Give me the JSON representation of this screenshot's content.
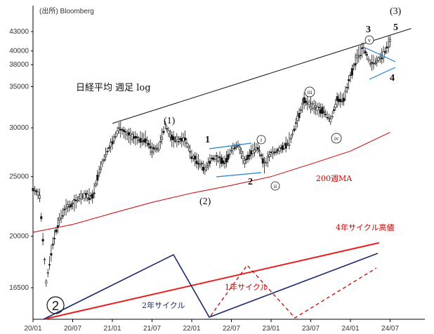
{
  "chart_data": {
    "type": "line",
    "title": "日経平均 週足 log",
    "source": "(出所) Bloomberg",
    "scale": "log",
    "ylim": [
      15000,
      46000
    ],
    "x_ticks": [
      "20/01",
      "20/07",
      "21/01",
      "21/07",
      "22/01",
      "22/07",
      "23/01",
      "23/07",
      "24/01",
      "24/07"
    ],
    "y_ticks": [
      43000,
      40000,
      38000,
      35000,
      30000,
      25000,
      20000,
      16500
    ],
    "series": [
      {
        "name": "日経平均",
        "style": "candles",
        "values": [
          [
            "20/01",
            23900
          ],
          [
            "20/02",
            23300
          ],
          [
            "20/03",
            16800
          ],
          [
            "20/04",
            19500
          ],
          [
            "20/05",
            21300
          ],
          [
            "20/06",
            22300
          ],
          [
            "20/07",
            22500
          ],
          [
            "20/08",
            23100
          ],
          [
            "20/09",
            23300
          ],
          [
            "20/10",
            23200
          ],
          [
            "20/11",
            25500
          ],
          [
            "20/12",
            27200
          ],
          [
            "21/01",
            28400
          ],
          [
            "21/02",
            30000
          ],
          [
            "21/03",
            29300
          ],
          [
            "21/04",
            29000
          ],
          [
            "21/05",
            28700
          ],
          [
            "21/06",
            28800
          ],
          [
            "21/07",
            27600
          ],
          [
            "21/08",
            27900
          ],
          [
            "21/09",
            30300
          ],
          [
            "21/10",
            28800
          ],
          [
            "21/11",
            28600
          ],
          [
            "21/12",
            28800
          ],
          [
            "22/01",
            27000
          ],
          [
            "22/02",
            26400
          ],
          [
            "22/03",
            25700
          ],
          [
            "22/04",
            26800
          ],
          [
            "22/05",
            26700
          ],
          [
            "22/06",
            26400
          ],
          [
            "22/07",
            27600
          ],
          [
            "22/08",
            28200
          ],
          [
            "22/09",
            26400
          ],
          [
            "22/10",
            27400
          ],
          [
            "22/11",
            28000
          ],
          [
            "22/12",
            26100
          ],
          [
            "23/01",
            27300
          ],
          [
            "23/02",
            27500
          ],
          [
            "23/03",
            28000
          ],
          [
            "23/04",
            28800
          ],
          [
            "23/05",
            31000
          ],
          [
            "23/06",
            33200
          ],
          [
            "23/07",
            32700
          ],
          [
            "23/08",
            32200
          ],
          [
            "23/09",
            31900
          ],
          [
            "23/10",
            30900
          ],
          [
            "23/11",
            33300
          ],
          [
            "23/12",
            33400
          ],
          [
            "24/01",
            36300
          ],
          [
            "24/02",
            39200
          ],
          [
            "24/03",
            40400
          ],
          [
            "24/04",
            38200
          ],
          [
            "24/05",
            38500
          ],
          [
            "24/06",
            39500
          ],
          [
            "24/07",
            41500
          ]
        ]
      },
      {
        "name": "200週MA",
        "style": "line",
        "color": "#cc0000",
        "values": [
          [
            "20/01",
            20300
          ],
          [
            "20/07",
            20900
          ],
          [
            "21/01",
            21800
          ],
          [
            "21/07",
            22700
          ],
          [
            "22/01",
            23500
          ],
          [
            "22/07",
            24200
          ],
          [
            "23/01",
            25000
          ],
          [
            "23/07",
            26200
          ],
          [
            "24/01",
            27500
          ],
          [
            "24/07",
            29500
          ]
        ]
      }
    ],
    "trendline": {
      "color": "#111111",
      "from": [
        "21/01",
        30500
      ],
      "to": [
        "24/07",
        43500
      ]
    },
    "wave_labels": {
      "primary": [
        "(1)",
        "(2)",
        "(3)"
      ],
      "minor": [
        "1",
        "2",
        "3",
        "4",
        "5"
      ],
      "circled": [
        "i",
        "ii",
        "iii",
        "iv",
        "v"
      ],
      "big": "2"
    },
    "ma_label": "200週MA",
    "cycle_labels": {
      "four_year": "4年サイクル高値",
      "two_year": "2年サイクル",
      "one_year": "1年サイクル"
    },
    "colors": {
      "candle": "#111111",
      "ma": "#cc0000",
      "trend": "#111111",
      "channel": "#1f7fd0",
      "four_year": "#e82020",
      "two_year": "#1b2a6b",
      "one_year": "#cc0000"
    }
  }
}
